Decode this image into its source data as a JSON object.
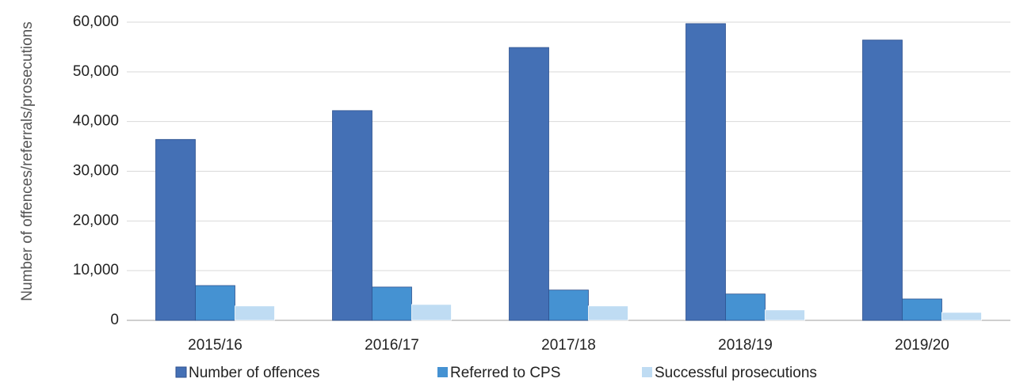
{
  "chart_data": {
    "type": "bar",
    "y_label": "Number of offences/referrals/prosecutions",
    "categories": [
      "2015/16",
      "2016/17",
      "2017/18",
      "2018/19",
      "2019/20"
    ],
    "series": [
      {
        "name": "Number of offences",
        "color": "#4470b5",
        "values": [
          36400,
          42200,
          54900,
          59700,
          56400
        ]
      },
      {
        "name": "Referred to CPS",
        "color": "#4592d2",
        "values": [
          7000,
          6700,
          6100,
          5300,
          4300
        ]
      },
      {
        "name": "Successful prosecutions",
        "color": "#bfdcf3",
        "values": [
          2900,
          3200,
          2900,
          2100,
          1600
        ]
      }
    ],
    "ylim": [
      0,
      60000
    ],
    "yticks": [
      0,
      {
        "value": 10000,
        "label": "10,000"
      },
      {
        "value": 20000,
        "label": "20,000"
      },
      {
        "value": 30000,
        "label": "30,000"
      },
      {
        "value": 40000,
        "label": "40,000"
      },
      {
        "value": 50000,
        "label": "50,000"
      },
      {
        "value": 60000,
        "label": "60,000"
      }
    ],
    "grid": true,
    "legend": "bottom"
  }
}
